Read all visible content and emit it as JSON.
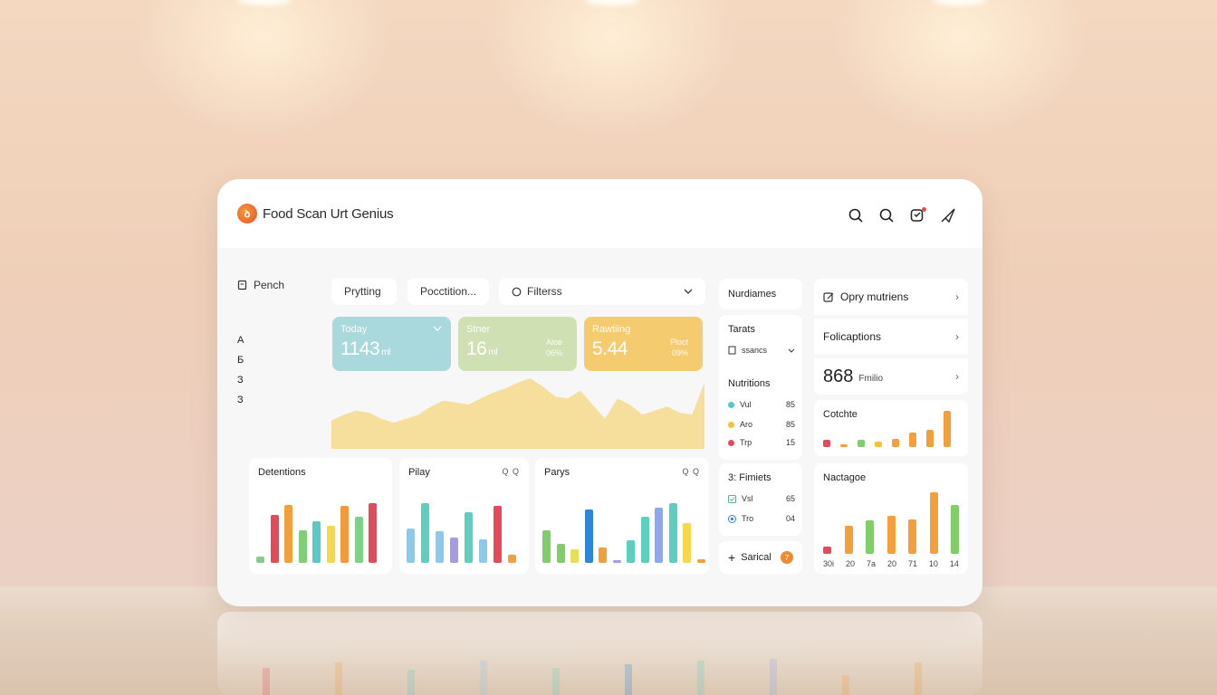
{
  "app": {
    "title": "Food Scan Urt Genius",
    "logo_glyph": "ꝺ"
  },
  "top_icons": [
    "search-icon",
    "search-icon",
    "notification-icon",
    "send-icon"
  ],
  "sidebar": {
    "pencil_label": "Pench",
    "letters": [
      "A",
      "Б",
      "З",
      "З"
    ]
  },
  "toolbar": {
    "tab1": "Prytting",
    "tab2": "Pocctition...",
    "filter_label": "Filterss"
  },
  "stats": [
    {
      "label": "Today",
      "value": "1143",
      "unit": "ml",
      "side1": "",
      "side2": "",
      "color": "#a9d9dc",
      "has_chevron": true
    },
    {
      "label": "Stner",
      "value": "16",
      "unit": "ml",
      "side1": "Aloe",
      "side2": "06%",
      "color": "#cfe1b2",
      "has_chevron": false
    },
    {
      "label": "Rawtiing",
      "value": "5.44",
      "unit": "",
      "side1": "Ploct",
      "side2": "09%",
      "color": "#f4cb6e",
      "has_chevron": false
    }
  ],
  "area_chart": {
    "type": "area",
    "color": "#f6d98c",
    "values": [
      28,
      34,
      38,
      36,
      30,
      26,
      30,
      34,
      42,
      48,
      46,
      44,
      50,
      56,
      60,
      66,
      70,
      62,
      52,
      50,
      58,
      44,
      30,
      50,
      44,
      34,
      38,
      42,
      36,
      34,
      66
    ]
  },
  "bottom_cards": [
    {
      "title": "Detentions",
      "tools": "",
      "bars": [
        {
          "v": 8,
          "c": "#7fd08a"
        },
        {
          "v": 64,
          "c": "#e34b5a"
        },
        {
          "v": 78,
          "c": "#f3a03c"
        },
        {
          "v": 44,
          "c": "#7fce7a"
        },
        {
          "v": 56,
          "c": "#5bc9c6"
        },
        {
          "v": 50,
          "c": "#f6d84a"
        },
        {
          "v": 76,
          "c": "#f39a3a"
        },
        {
          "v": 62,
          "c": "#7fd08a"
        },
        {
          "v": 80,
          "c": "#e34b5a"
        }
      ]
    },
    {
      "title": "Pilay",
      "tools": "Q Q",
      "bars": [
        {
          "v": 44,
          "c": "#8cc9ef"
        },
        {
          "v": 76,
          "c": "#5ecfbf"
        },
        {
          "v": 40,
          "c": "#8cc9ef"
        },
        {
          "v": 32,
          "c": "#a79be3"
        },
        {
          "v": 64,
          "c": "#5ecfbf"
        },
        {
          "v": 30,
          "c": "#8cc9ef"
        },
        {
          "v": 72,
          "c": "#e34b5a"
        },
        {
          "v": 10,
          "c": "#f3a03c"
        }
      ]
    },
    {
      "title": "Parys",
      "tools": "Q Q",
      "bars": [
        {
          "v": 54,
          "c": "#7fce6a"
        },
        {
          "v": 32,
          "c": "#7fce6a"
        },
        {
          "v": 22,
          "c": "#e8e054"
        },
        {
          "v": 90,
          "c": "#2d86d9"
        },
        {
          "v": 26,
          "c": "#f3a03c"
        },
        {
          "v": 4,
          "c": "#a79be3"
        },
        {
          "v": 38,
          "c": "#5ecfbf"
        },
        {
          "v": 78,
          "c": "#5ecfbf"
        },
        {
          "v": 92,
          "c": "#8ca8ef"
        },
        {
          "v": 100,
          "c": "#5ecfbf"
        },
        {
          "v": 66,
          "c": "#f6d84a"
        },
        {
          "v": 6,
          "c": "#f3a03c"
        }
      ]
    }
  ],
  "col3": {
    "header": "Nurdiames",
    "targets_title": "Tarats",
    "select_label": "ssancs",
    "nutritions_title": "Nutritions",
    "legend": [
      {
        "name": "Vul",
        "value": "85",
        "color": "#58c6cf"
      },
      {
        "name": "Aro",
        "value": "85",
        "color": "#f3c33b"
      },
      {
        "name": "Trp",
        "value": "15",
        "color": "#e34b5a"
      }
    ],
    "filters_title": "3: Fimiets",
    "filters": [
      {
        "name": "Vsl",
        "value": "65",
        "icon": "checkbox-icon"
      },
      {
        "name": "Tro",
        "value": "04",
        "icon": "target-icon"
      }
    ],
    "add_label": "Sarical",
    "add_badge": "7"
  },
  "col4": {
    "rows": [
      {
        "label": "Opry mutriens",
        "icon": "edit-icon"
      },
      {
        "label": "Folicaptions",
        "icon": ""
      }
    ],
    "big_value": "868",
    "big_unit": "Fmilio",
    "chart1_title": "Cotchte",
    "chart1_bars": [
      {
        "v": 14,
        "c": "#e34b5a"
      },
      {
        "v": 6,
        "c": "#f3a03c"
      },
      {
        "v": 14,
        "c": "#7fce6a"
      },
      {
        "v": 10,
        "c": "#f3c33b"
      },
      {
        "v": 16,
        "c": "#f3a03c"
      },
      {
        "v": 28,
        "c": "#f3a03c"
      },
      {
        "v": 34,
        "c": "#f3a03c"
      },
      {
        "v": 72,
        "c": "#f3a03c"
      }
    ],
    "chart2_title": "Nactagoe",
    "chart2_bars": [
      {
        "v": 12,
        "c": "#e34b5a"
      },
      {
        "v": 46,
        "c": "#f3a03c"
      },
      {
        "v": 54,
        "c": "#7fce6a"
      },
      {
        "v": 62,
        "c": "#f3a03c"
      },
      {
        "v": 56,
        "c": "#f3a03c"
      },
      {
        "v": 100,
        "c": "#f3a03c"
      },
      {
        "v": 80,
        "c": "#7fce6a"
      }
    ],
    "chart2_labels": [
      "30i",
      "20",
      "7a",
      "20",
      "71",
      "10",
      "14"
    ]
  },
  "reflection": {
    "bars": [
      {
        "v": 30,
        "c": "#e34b5a"
      },
      {
        "v": 36,
        "c": "#f3a03c"
      },
      {
        "v": 28,
        "c": "#5bc9c6"
      },
      {
        "v": 38,
        "c": "#8cc9ef"
      },
      {
        "v": 30,
        "c": "#5ecfbf"
      },
      {
        "v": 34,
        "c": "#2d86d9"
      },
      {
        "v": 38,
        "c": "#5ecfbf"
      },
      {
        "v": 40,
        "c": "#8ca8ef"
      },
      {
        "v": 22,
        "c": "#f3a03c"
      },
      {
        "v": 36,
        "c": "#f3a03c"
      }
    ]
  }
}
